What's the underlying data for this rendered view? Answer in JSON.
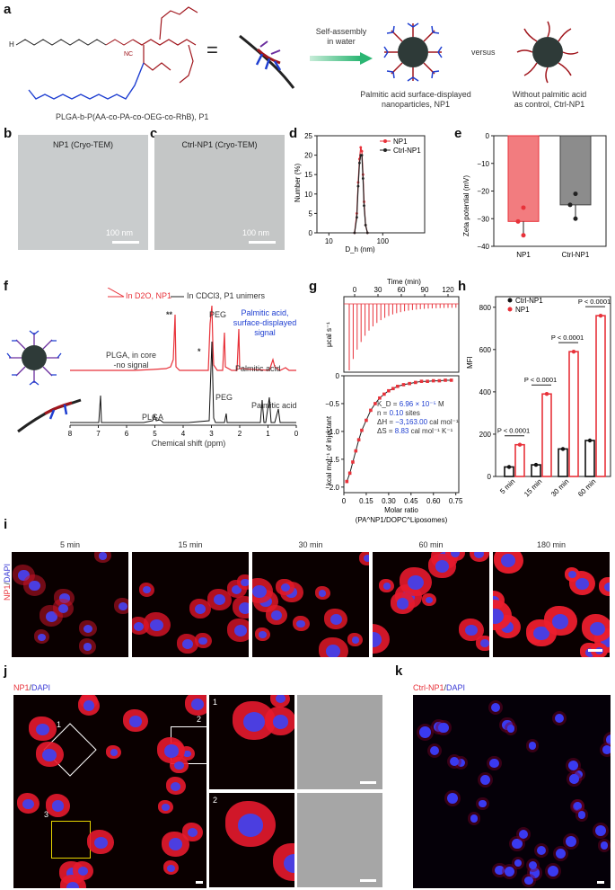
{
  "panels": {
    "a": "a",
    "b": "b",
    "c": "c",
    "d": "d",
    "e": "e",
    "f": "f",
    "g": "g",
    "h": "h",
    "i": "i",
    "j": "j",
    "k": "k"
  },
  "a": {
    "polymer_name": "PLGA-b-P(AA-co-PA-co-OEG-co-RhB), P1",
    "equals": "=",
    "arrow_label": "Self-assembly\nin water",
    "versus": "versus",
    "np1_caption": "Palmitic acid surface-displayed\nnanoparticles, NP1",
    "ctrl_caption": "Without palmitic acid\nas control, Ctrl-NP1",
    "colors": {
      "backbone": "#a0151c",
      "palmitic": "#1f3fd1",
      "pla": "#222222",
      "core": "#2e3a38",
      "arrow": "#2bb673"
    }
  },
  "b": {
    "title": "NP1 (Cryo-TEM)",
    "scale": "100 nm"
  },
  "c": {
    "title": "Ctrl-NP1 (Cryo-TEM)",
    "scale": "100 nm"
  },
  "d": {
    "legend": [
      "NP1",
      "Ctrl-NP1"
    ],
    "ylabel": "Number (%)",
    "xlabel": "D_h (nm)",
    "yticks": [
      "0",
      "5",
      "10",
      "15",
      "20",
      "25"
    ],
    "xticks": [
      "10",
      "100"
    ]
  },
  "e": {
    "ylabel": "Zeta potential (mV)",
    "yticks": [
      "0",
      "−10",
      "−20",
      "−30",
      "−40"
    ],
    "categories": [
      "NP1",
      "Ctrl-NP1"
    ]
  },
  "f": {
    "legend": [
      "In D2O, NP1",
      "In CDCl3, P1 unimers"
    ],
    "annotations": {
      "plga_core": "PLGA, in core\n-no signal",
      "peg_top": "PEG",
      "peg_bottom": "PEG",
      "palmitic_blue": "Palmitic acid,\nsurface-displayed\nsignal",
      "palmitic_top": "Palmitic acid",
      "palmitic_bottom": "Palmitic acid",
      "plga_bottom": "PLGA",
      "double_star": "**",
      "star": "*"
    },
    "xlabel": "Chemical shift (ppm)",
    "xticks": [
      "8",
      "7",
      "6",
      "5",
      "4",
      "3",
      "2",
      "1",
      "0"
    ]
  },
  "g": {
    "top_xlabel": "Time (min)",
    "top_xticks": [
      "0",
      "30",
      "60",
      "90",
      "120"
    ],
    "top_ylabel": "μcal s⁻¹",
    "bottom_ylabel": "kcal mol⁻¹ of injectant",
    "yticks": [
      "0",
      "−0.5",
      "−1.0",
      "−1.5",
      "−2.0"
    ],
    "xticks": [
      "0",
      "0.15",
      "0.30",
      "0.45",
      "0.60",
      "0.75"
    ],
    "xlabel": "Molar ratio",
    "xlabel2": "(PA^NP1/DOPC^Liposomes)",
    "params": {
      "kd_label": "K_D = ",
      "kd_value": "6.96 × 10⁻⁵",
      "kd_unit": " M",
      "n_label": "n = ",
      "n_value": "0.10",
      "n_unit": " sites",
      "dh_label": "ΔH = ",
      "dh_value": "−3,163.00",
      "dh_unit": " cal mol⁻¹",
      "ds_label": "ΔS = ",
      "ds_value": "8.83",
      "ds_unit": " cal mol⁻¹ K⁻¹"
    }
  },
  "h": {
    "legend": [
      "Ctrl-NP1",
      "NP1"
    ],
    "ylabel": "MFI",
    "yticks": [
      "0",
      "200",
      "400",
      "600",
      "800"
    ],
    "categories": [
      "5 min",
      "15 min",
      "30 min",
      "60 min"
    ],
    "pvalues": [
      "P < 0.0001",
      "P < 0.0001",
      "P < 0.0001",
      "P < 0.0001"
    ]
  },
  "i": {
    "timepoints": [
      "5 min",
      "15 min",
      "30 min",
      "60 min",
      "180 min"
    ],
    "stain_np1": "NP1",
    "stain_sep": "/",
    "stain_dapi": "DAPI"
  },
  "j": {
    "stain_np1": "NP1",
    "stain_sep": "/",
    "stain_dapi": "DAPI",
    "box_labels": [
      "1",
      "2",
      "3"
    ],
    "inset_labels": [
      "1",
      "2"
    ]
  },
  "k": {
    "stain_np1": "Ctrl-NP1",
    "stain_sep": "/",
    "stain_dapi": "DAPI"
  },
  "chart_data": [
    {
      "type": "line",
      "panel": "d",
      "xlabel": "D_h (nm)",
      "ylabel": "Number (%)",
      "xscale": "log",
      "xlim": [
        6,
        600
      ],
      "ylim": [
        0,
        25
      ],
      "series": [
        {
          "name": "NP1",
          "color": "#e8323a",
          "x": [
            30,
            33,
            35,
            37,
            39,
            41,
            43,
            45,
            48,
            52
          ],
          "y": [
            0,
            5,
            13,
            19,
            22,
            21,
            15,
            8,
            2,
            0
          ]
        },
        {
          "name": "Ctrl-NP1",
          "color": "#222222",
          "x": [
            30,
            33,
            35,
            37,
            39,
            41,
            43,
            45,
            48,
            52
          ],
          "y": [
            0,
            4,
            12,
            18,
            20,
            20,
            14,
            7,
            2,
            0
          ]
        }
      ]
    },
    {
      "type": "bar",
      "panel": "e",
      "categories": [
        "NP1",
        "Ctrl-NP1"
      ],
      "values": [
        -31,
        -25
      ],
      "points": [
        [
          -26,
          -31,
          -36
        ],
        [
          -21,
          -25,
          -30
        ]
      ],
      "colors": [
        "#ef5b5f",
        "#6f6f6f"
      ],
      "ylim": [
        -40,
        0
      ],
      "ylabel": "Zeta potential (mV)"
    },
    {
      "type": "bar",
      "panel": "h",
      "categories": [
        "5 min",
        "15 min",
        "30 min",
        "60 min"
      ],
      "series": [
        {
          "name": "Ctrl-NP1",
          "color": "#111111",
          "values": [
            45,
            55,
            130,
            170
          ]
        },
        {
          "name": "NP1",
          "color": "#e8323a",
          "values": [
            150,
            390,
            590,
            760
          ]
        }
      ],
      "ylim": [
        0,
        850
      ],
      "ylabel": "MFI"
    },
    {
      "type": "scatter",
      "panel": "g",
      "xlabel": "Molar ratio",
      "ylabel": "kcal mol⁻¹ of injectant",
      "xlim": [
        0,
        0.77
      ],
      "ylim": [
        -2.1,
        0
      ],
      "x": [
        0.02,
        0.04,
        0.06,
        0.08,
        0.1,
        0.12,
        0.15,
        0.18,
        0.21,
        0.24,
        0.27,
        0.3,
        0.33,
        0.36,
        0.4,
        0.44,
        0.48,
        0.52,
        0.56,
        0.6,
        0.64,
        0.68,
        0.72
      ],
      "y": [
        -1.9,
        -1.75,
        -1.55,
        -1.35,
        -1.15,
        -0.98,
        -0.8,
        -0.62,
        -0.5,
        -0.4,
        -0.33,
        -0.27,
        -0.23,
        -0.19,
        -0.16,
        -0.14,
        -0.12,
        -0.1,
        -0.1,
        -0.09,
        -0.09,
        -0.08,
        -0.08
      ]
    }
  ]
}
